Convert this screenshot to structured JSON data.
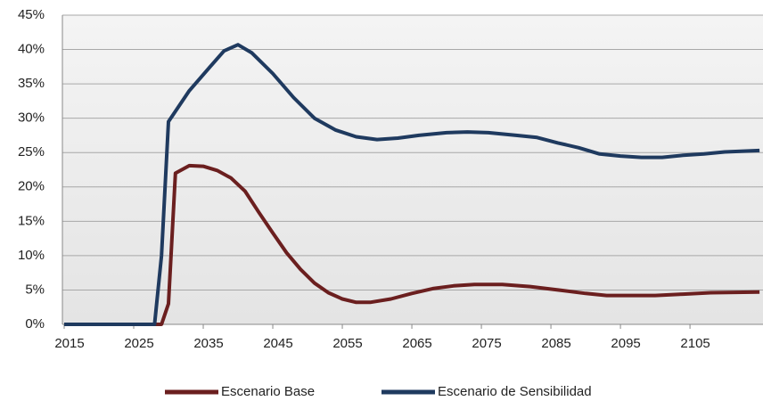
{
  "chart_data": {
    "type": "line",
    "xlim": [
      2015,
      2115.5
    ],
    "xticks": [
      2015,
      2025,
      2035,
      2045,
      2055,
      2065,
      2075,
      2085,
      2095,
      2105
    ],
    "ylim": [
      0,
      45
    ],
    "yticks": [
      {
        "value": 0,
        "label": "0%"
      },
      {
        "value": 5,
        "label": "5%"
      },
      {
        "value": 10,
        "label": "10%"
      },
      {
        "value": 15,
        "label": "15%"
      },
      {
        "value": 20,
        "label": "20%"
      },
      {
        "value": 25,
        "label": "25%"
      },
      {
        "value": 30,
        "label": "30%"
      },
      {
        "value": 35,
        "label": "35%"
      },
      {
        "value": 40,
        "label": "40%"
      },
      {
        "value": 45,
        "label": "45%"
      }
    ],
    "grid": true,
    "legend": "bottom",
    "series": [
      {
        "name": "Escenario Base",
        "color": "#6b1f1f",
        "x": [
          2015,
          2029,
          2030,
          2031,
          2033,
          2035,
          2037,
          2039,
          2041,
          2043,
          2045,
          2047,
          2049,
          2051,
          2053,
          2055,
          2057,
          2059,
          2062,
          2065,
          2068,
          2071,
          2074,
          2078,
          2082,
          2086,
          2090,
          2093,
          2096,
          2100,
          2104,
          2108,
          2115
        ],
        "values": [
          0,
          0,
          3,
          22,
          23.1,
          23,
          22.4,
          21.3,
          19.4,
          16.3,
          13.3,
          10.4,
          8,
          6,
          4.6,
          3.7,
          3.2,
          3.2,
          3.7,
          4.5,
          5.2,
          5.6,
          5.8,
          5.8,
          5.5,
          5,
          4.5,
          4.2,
          4.2,
          4.2,
          4.4,
          4.6,
          4.7
        ]
      },
      {
        "name": "Escenario de Sensibilidad",
        "color": "#1f3a5f",
        "x": [
          2015,
          2028,
          2029,
          2030,
          2033,
          2036,
          2038,
          2040,
          2042,
          2045,
          2048,
          2051,
          2054,
          2057,
          2060,
          2063,
          2066,
          2070,
          2073,
          2076,
          2080,
          2083,
          2086,
          2089,
          2092,
          2095,
          2098,
          2101,
          2104,
          2107,
          2110,
          2115
        ],
        "values": [
          0,
          0,
          10,
          29.5,
          34,
          37.5,
          39.8,
          40.7,
          39.5,
          36.5,
          33,
          30,
          28.3,
          27.3,
          26.9,
          27.1,
          27.5,
          27.9,
          28,
          27.9,
          27.5,
          27.2,
          26.4,
          25.7,
          24.8,
          24.5,
          24.3,
          24.3,
          24.6,
          24.8,
          25.1,
          25.3
        ]
      }
    ]
  }
}
